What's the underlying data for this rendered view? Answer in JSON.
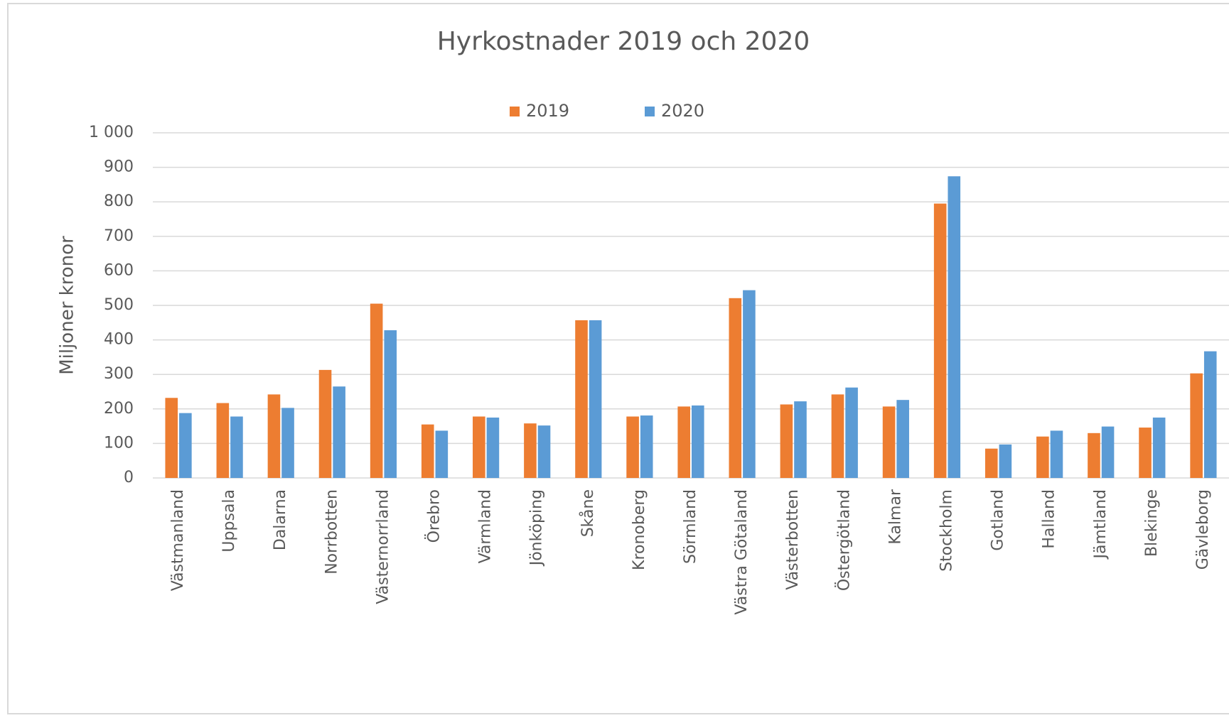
{
  "chart_data": {
    "type": "bar",
    "title": "Hyrkostnader 2019 och 2020",
    "y_label": "Miljoner kronor",
    "categories": [
      "Västmanland",
      "Uppsala",
      "Dalarna",
      "Norrbotten",
      "Västernorrland",
      "Örebro",
      "Värmland",
      "Jönköping",
      "Skåne",
      "Kronoberg",
      "Sörmland",
      "Västra Götaland",
      "Västerbotten",
      "Östergötland",
      "Kalmar",
      "Stockholm",
      "Gotland",
      "Halland",
      "Jämtland",
      "Blekinge",
      "Gävleborg"
    ],
    "series": [
      {
        "name": "2019",
        "color": "#ed7d31",
        "values": [
          232,
          217,
          242,
          313,
          505,
          155,
          178,
          158,
          457,
          178,
          207,
          521,
          213,
          242,
          207,
          795,
          85,
          120,
          130,
          146,
          303
        ]
      },
      {
        "name": "2020",
        "color": "#5b9bd5",
        "values": [
          188,
          178,
          203,
          265,
          428,
          137,
          175,
          152,
          457,
          181,
          210,
          544,
          222,
          262,
          226,
          874,
          97,
          137,
          149,
          175,
          367
        ]
      }
    ],
    "ylim": [
      0,
      1000
    ],
    "yticks": [
      0,
      100,
      200,
      300,
      400,
      500,
      600,
      700,
      800,
      900,
      {
        "value": 1000,
        "label": "1 000"
      }
    ],
    "grid": true,
    "legend": "top"
  }
}
